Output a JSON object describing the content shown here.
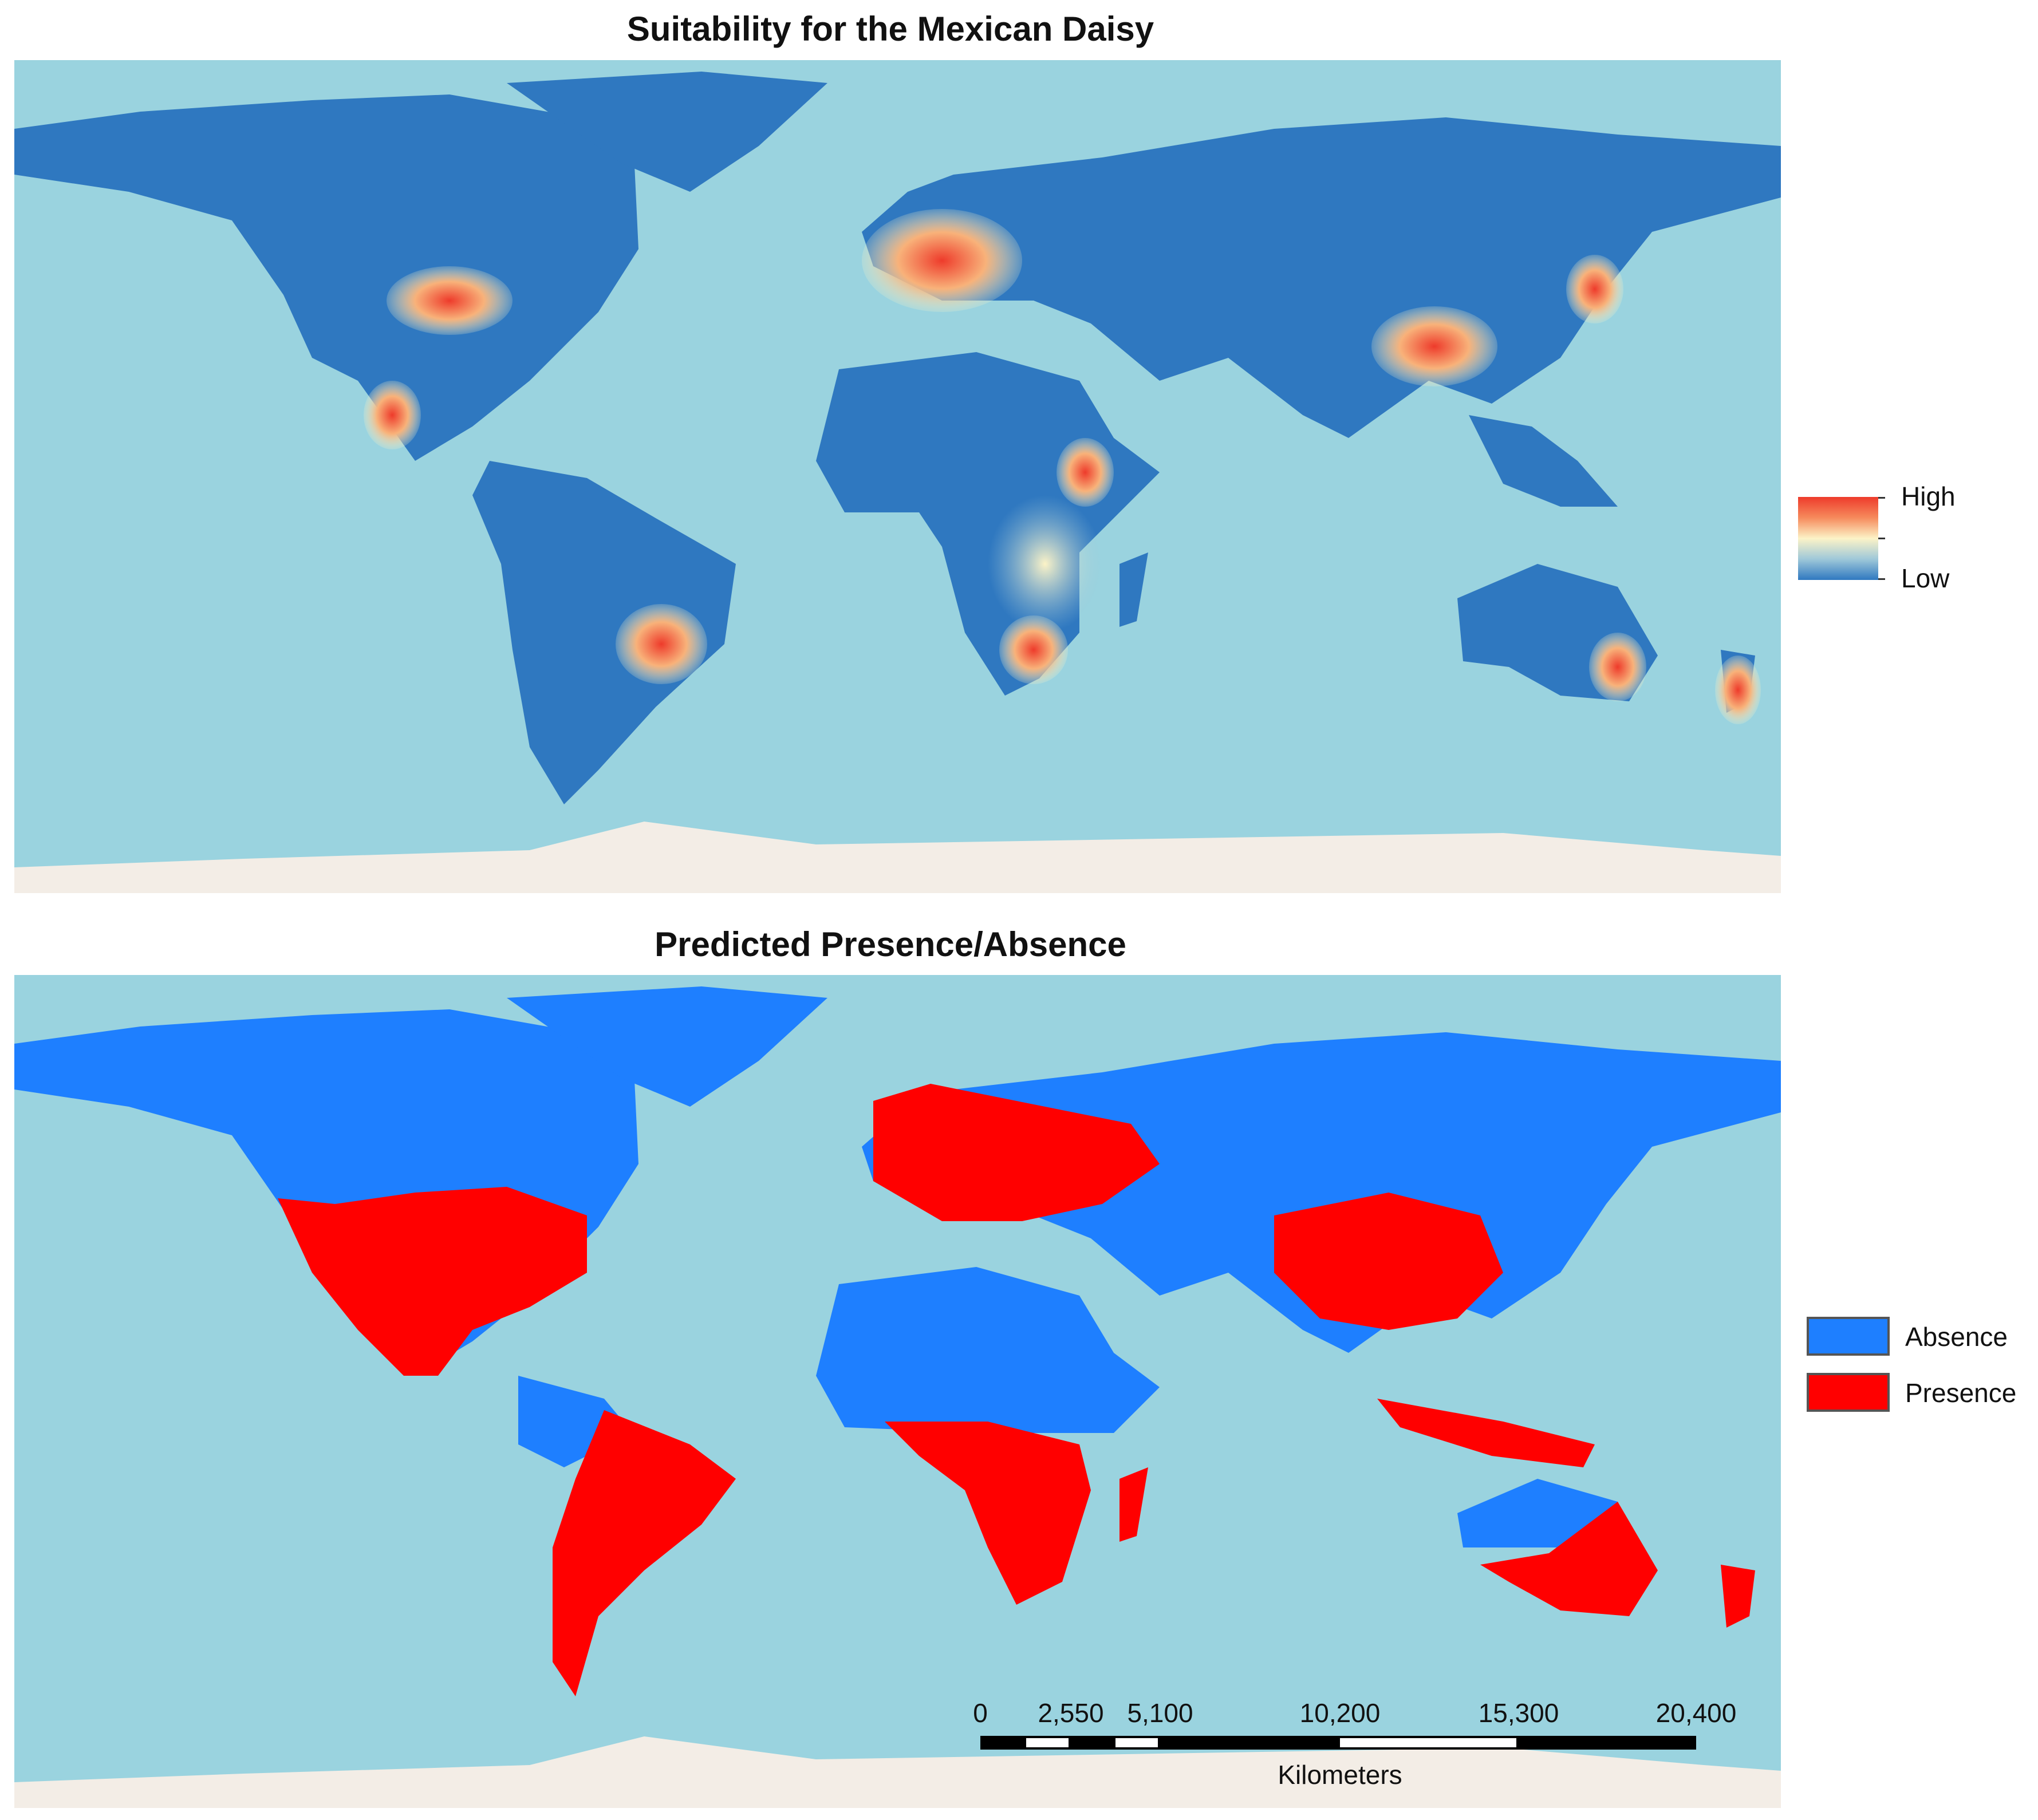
{
  "top_panel": {
    "title": "Suitability for the Mexican Daisy",
    "legend": {
      "high_label": "High",
      "low_label": "Low"
    }
  },
  "bottom_panel": {
    "title": "Predicted Presence/Absence",
    "legend": {
      "items": [
        {
          "label": "Absence",
          "color": "#1e7fff"
        },
        {
          "label": "Presence",
          "color": "#ff0000"
        }
      ]
    }
  },
  "scale_bar": {
    "tick_labels": [
      "0",
      "2,550",
      "5,100",
      "10,200",
      "15,300",
      "20,400"
    ],
    "unit": "Kilometers"
  },
  "colors": {
    "ocean": "#9ad3df",
    "antarctica": "#f3ede6",
    "land_low": "#2f78c0",
    "suitability_high": "#ee3b2b",
    "suitability_mid": "#fcf3c7",
    "absence": "#1e7fff",
    "presence": "#ff0000"
  }
}
